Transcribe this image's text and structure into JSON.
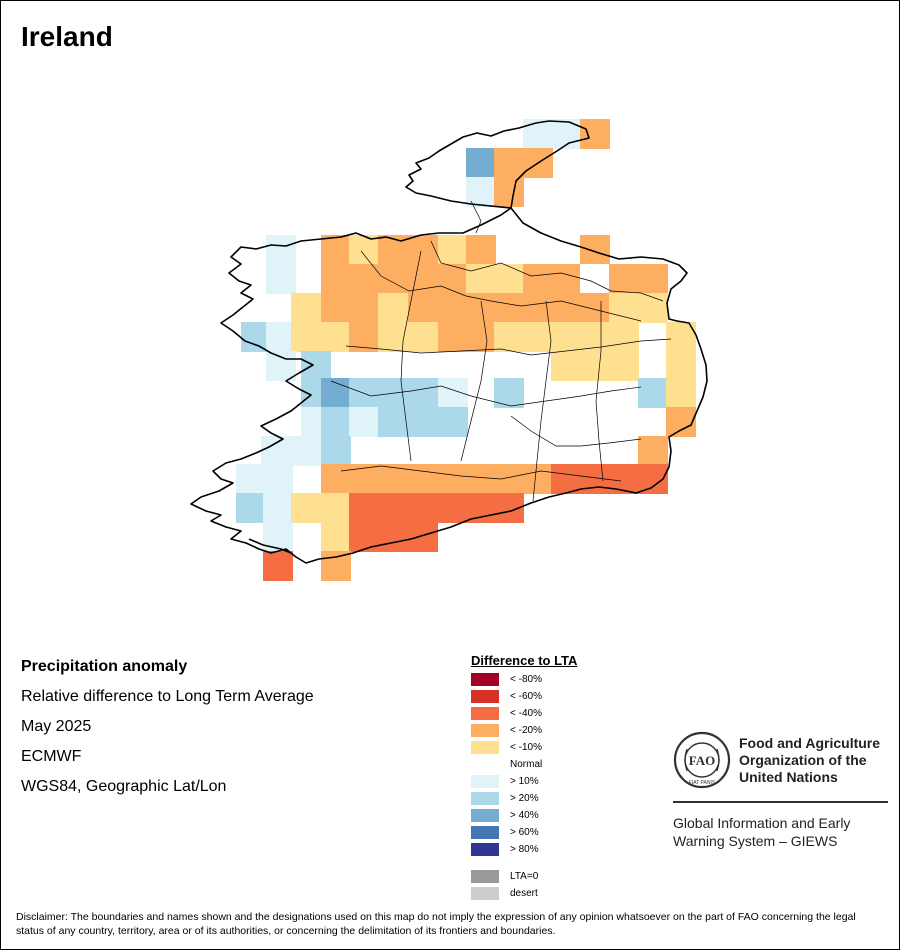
{
  "map": {
    "title": "Ireland",
    "info": {
      "heading": "Precipitation anomaly",
      "lines": [
        "Relative difference to Long Term Average",
        "May 2025",
        "ECMWF",
        "WGS84, Geographic Lat/Lon"
      ]
    },
    "legend": {
      "title": "Difference to LTA",
      "items": [
        {
          "label": "< -80%",
          "color": "#a50026"
        },
        {
          "label": "< -60%",
          "color": "#d73027"
        },
        {
          "label": "< -40%",
          "color": "#f46d43"
        },
        {
          "label": "< -20%",
          "color": "#fdae61"
        },
        {
          "label": "< -10%",
          "color": "#fee090"
        },
        {
          "label": "Normal",
          "color": "#ffffff"
        },
        {
          "label": "> 10%",
          "color": "#e0f3f8"
        },
        {
          "label": "> 20%",
          "color": "#abd9e9"
        },
        {
          "label": "> 40%",
          "color": "#74add1"
        },
        {
          "label": "> 60%",
          "color": "#4575b4"
        },
        {
          "label": "> 80%",
          "color": "#313695"
        },
        {
          "label": "LTA=0",
          "color": "#999999"
        },
        {
          "label": "desert",
          "color": "#cccccc"
        }
      ]
    },
    "org": {
      "fao_name": "Food and Agriculture Organization of the United Nations",
      "logo_text": "FAO",
      "logo_motto": "FIAT PANIS",
      "system_name": "Global Information and Early Warning System – GIEWS"
    },
    "disclaimer": "Disclaimer: The boundaries and names shown and the designations used on this map do not imply the expression of any opinion whatsoever on the part of FAO concerning the legal status of any country, territory, area or of its authorities, or concerning the delimitation of its frontiers and boundaries.",
    "grid_cells": [
      [
        522,
        118,
        "#e0f3f8"
      ],
      [
        550,
        118,
        "#e0f3f8"
      ],
      [
        579,
        118,
        "#fdae61"
      ],
      [
        437,
        147,
        "#ffffff"
      ],
      [
        465,
        147,
        "#74add1"
      ],
      [
        493,
        147,
        "#fdae61"
      ],
      [
        522,
        147,
        "#fdae61"
      ],
      [
        437,
        176,
        "#ffffff"
      ],
      [
        465,
        176,
        "#e0f3f8"
      ],
      [
        493,
        176,
        "#fdae61"
      ],
      [
        265,
        234,
        "#e0f3f8"
      ],
      [
        320,
        234,
        "#fdae61"
      ],
      [
        348,
        234,
        "#fee090"
      ],
      [
        377,
        234,
        "#fdae61"
      ],
      [
        407,
        234,
        "#fdae61"
      ],
      [
        437,
        234,
        "#fee090"
      ],
      [
        465,
        234,
        "#fdae61"
      ],
      [
        579,
        234,
        "#fdae61"
      ],
      [
        265,
        263,
        "#e0f3f8"
      ],
      [
        320,
        263,
        "#fdae61"
      ],
      [
        348,
        263,
        "#fdae61"
      ],
      [
        377,
        263,
        "#fdae61"
      ],
      [
        407,
        263,
        "#fdae61"
      ],
      [
        437,
        263,
        "#fdae61"
      ],
      [
        465,
        263,
        "#fee090"
      ],
      [
        493,
        263,
        "#fee090"
      ],
      [
        522,
        263,
        "#fdae61"
      ],
      [
        550,
        263,
        "#fdae61"
      ],
      [
        579,
        263,
        "#ffffff"
      ],
      [
        608,
        263,
        "#fdae61"
      ],
      [
        637,
        263,
        "#fdae61"
      ],
      [
        290,
        292,
        "#fee090"
      ],
      [
        320,
        292,
        "#fdae61"
      ],
      [
        348,
        292,
        "#fdae61"
      ],
      [
        377,
        292,
        "#fee090"
      ],
      [
        407,
        292,
        "#fdae61"
      ],
      [
        437,
        292,
        "#fdae61"
      ],
      [
        465,
        292,
        "#fdae61"
      ],
      [
        493,
        292,
        "#fdae61"
      ],
      [
        522,
        292,
        "#fdae61"
      ],
      [
        550,
        292,
        "#fdae61"
      ],
      [
        579,
        292,
        "#fdae61"
      ],
      [
        608,
        292,
        "#fee090"
      ],
      [
        637,
        292,
        "#fee090"
      ],
      [
        240,
        321,
        "#abd9e9"
      ],
      [
        265,
        321,
        "#e0f3f8"
      ],
      [
        290,
        321,
        "#fee090"
      ],
      [
        320,
        321,
        "#fee090"
      ],
      [
        348,
        321,
        "#fdae61"
      ],
      [
        377,
        321,
        "#fee090"
      ],
      [
        407,
        321,
        "#fee090"
      ],
      [
        437,
        321,
        "#fdae61"
      ],
      [
        465,
        321,
        "#fdae61"
      ],
      [
        493,
        321,
        "#fee090"
      ],
      [
        522,
        321,
        "#fee090"
      ],
      [
        550,
        321,
        "#fee090"
      ],
      [
        579,
        321,
        "#fee090"
      ],
      [
        608,
        321,
        "#fee090"
      ],
      [
        665,
        321,
        "#fee090"
      ],
      [
        265,
        350,
        "#e0f3f8"
      ],
      [
        300,
        350,
        "#abd9e9"
      ],
      [
        550,
        350,
        "#fee090"
      ],
      [
        579,
        350,
        "#fee090"
      ],
      [
        608,
        350,
        "#fee090"
      ],
      [
        665,
        350,
        "#fee090"
      ],
      [
        300,
        377,
        "#abd9e9"
      ],
      [
        320,
        377,
        "#74add1"
      ],
      [
        348,
        377,
        "#abd9e9"
      ],
      [
        377,
        377,
        "#abd9e9"
      ],
      [
        407,
        377,
        "#abd9e9"
      ],
      [
        437,
        377,
        "#e0f3f8"
      ],
      [
        493,
        377,
        "#abd9e9"
      ],
      [
        637,
        377,
        "#abd9e9"
      ],
      [
        665,
        377,
        "#fee090"
      ],
      [
        300,
        406,
        "#e0f3f8"
      ],
      [
        320,
        406,
        "#abd9e9"
      ],
      [
        348,
        406,
        "#e0f3f8"
      ],
      [
        377,
        406,
        "#abd9e9"
      ],
      [
        407,
        406,
        "#abd9e9"
      ],
      [
        437,
        406,
        "#abd9e9"
      ],
      [
        665,
        406,
        "#fdae61"
      ],
      [
        260,
        435,
        "#e0f3f8"
      ],
      [
        290,
        435,
        "#e0f3f8"
      ],
      [
        320,
        435,
        "#abd9e9"
      ],
      [
        637,
        435,
        "#fdae61"
      ],
      [
        235,
        463,
        "#e0f3f8"
      ],
      [
        262,
        463,
        "#e0f3f8"
      ],
      [
        320,
        463,
        "#fdae61"
      ],
      [
        348,
        463,
        "#fdae61"
      ],
      [
        377,
        463,
        "#fdae61"
      ],
      [
        407,
        463,
        "#fdae61"
      ],
      [
        437,
        463,
        "#fdae61"
      ],
      [
        465,
        463,
        "#fdae61"
      ],
      [
        493,
        463,
        "#fdae61"
      ],
      [
        522,
        463,
        "#fdae61"
      ],
      [
        550,
        463,
        "#f46d43"
      ],
      [
        579,
        463,
        "#f46d43"
      ],
      [
        608,
        463,
        "#f46d43"
      ],
      [
        637,
        463,
        "#f46d43"
      ],
      [
        235,
        492,
        "#abd9e9"
      ],
      [
        262,
        492,
        "#e0f3f8"
      ],
      [
        290,
        492,
        "#fee090"
      ],
      [
        320,
        492,
        "#fee090"
      ],
      [
        348,
        492,
        "#f46d43"
      ],
      [
        377,
        492,
        "#f46d43"
      ],
      [
        407,
        492,
        "#f46d43"
      ],
      [
        437,
        492,
        "#f46d43"
      ],
      [
        465,
        492,
        "#f46d43"
      ],
      [
        493,
        492,
        "#f46d43"
      ],
      [
        262,
        521,
        "#e0f3f8"
      ],
      [
        320,
        521,
        "#fee090"
      ],
      [
        348,
        521,
        "#f46d43"
      ],
      [
        377,
        521,
        "#f46d43"
      ],
      [
        407,
        521,
        "#f46d43"
      ],
      [
        262,
        550,
        "#f46d43"
      ],
      [
        320,
        550,
        "#fdae61"
      ]
    ]
  }
}
